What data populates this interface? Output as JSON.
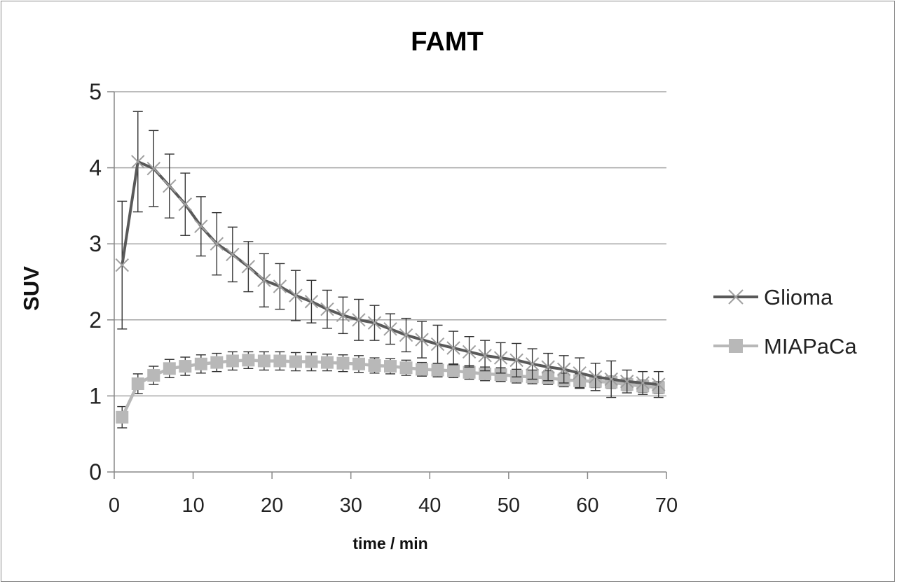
{
  "chart_data": {
    "type": "line",
    "title": "FAMT",
    "xlabel": "time / min",
    "ylabel": "SUV",
    "xlim": [
      0,
      70
    ],
    "ylim": [
      0,
      5
    ],
    "x_ticks": [
      "0",
      "10",
      "20",
      "30",
      "40",
      "50",
      "60",
      "70"
    ],
    "y_ticks": [
      "0",
      "1",
      "2",
      "3",
      "4",
      "5"
    ],
    "grid": "horizontal",
    "legend_position": "right",
    "series": [
      {
        "name": "Glioma",
        "color": "#595959",
        "marker": "x",
        "x": [
          1,
          3,
          5,
          7,
          9,
          11,
          13,
          15,
          17,
          19,
          21,
          23,
          25,
          27,
          29,
          31,
          33,
          35,
          37,
          39,
          41,
          43,
          45,
          47,
          49,
          51,
          53,
          55,
          57,
          59,
          61,
          63,
          65,
          67,
          69
        ],
        "y": [
          2.72,
          4.08,
          3.99,
          3.76,
          3.52,
          3.23,
          3.0,
          2.86,
          2.7,
          2.52,
          2.44,
          2.32,
          2.24,
          2.14,
          2.06,
          2.0,
          1.96,
          1.88,
          1.8,
          1.74,
          1.68,
          1.63,
          1.58,
          1.53,
          1.5,
          1.47,
          1.42,
          1.38,
          1.35,
          1.3,
          1.25,
          1.22,
          1.19,
          1.17,
          1.15
        ],
        "error": [
          0.84,
          0.66,
          0.5,
          0.42,
          0.41,
          0.39,
          0.41,
          0.36,
          0.33,
          0.35,
          0.3,
          0.33,
          0.28,
          0.25,
          0.24,
          0.27,
          0.23,
          0.2,
          0.22,
          0.24,
          0.25,
          0.22,
          0.2,
          0.2,
          0.2,
          0.22,
          0.2,
          0.18,
          0.18,
          0.2,
          0.18,
          0.24,
          0.15,
          0.15,
          0.17
        ]
      },
      {
        "name": "MIAPaCa",
        "color": "#b8b8b8",
        "marker": "square",
        "x": [
          1,
          3,
          5,
          7,
          9,
          11,
          13,
          15,
          17,
          19,
          21,
          23,
          25,
          27,
          29,
          31,
          33,
          35,
          37,
          39,
          41,
          43,
          45,
          47,
          49,
          51,
          53,
          55,
          57,
          59,
          61,
          63,
          65,
          67,
          69
        ],
        "y": [
          0.72,
          1.16,
          1.27,
          1.36,
          1.39,
          1.42,
          1.44,
          1.46,
          1.47,
          1.46,
          1.46,
          1.45,
          1.45,
          1.44,
          1.43,
          1.42,
          1.4,
          1.39,
          1.37,
          1.35,
          1.34,
          1.33,
          1.31,
          1.29,
          1.28,
          1.26,
          1.25,
          1.24,
          1.21,
          1.2,
          1.19,
          1.18,
          1.15,
          1.13,
          1.11
        ],
        "error": [
          0.14,
          0.13,
          0.12,
          0.12,
          0.12,
          0.12,
          0.12,
          0.12,
          0.11,
          0.12,
          0.12,
          0.12,
          0.12,
          0.11,
          0.11,
          0.11,
          0.1,
          0.1,
          0.1,
          0.09,
          0.09,
          0.09,
          0.09,
          0.09,
          0.09,
          0.09,
          0.09,
          0.09,
          0.09,
          0.09,
          0.08,
          0.08,
          0.08,
          0.08,
          0.08
        ]
      }
    ]
  }
}
